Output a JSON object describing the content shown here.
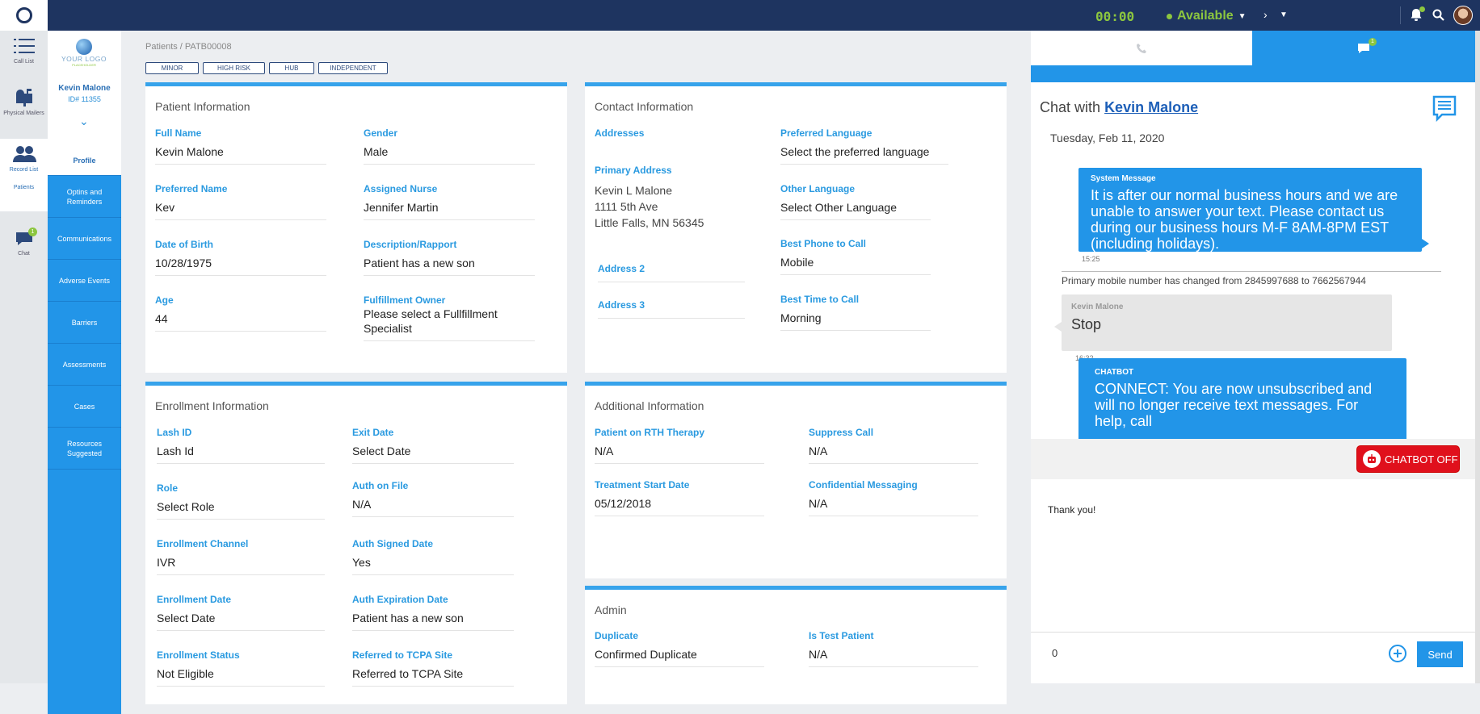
{
  "topbar": {
    "timer": "00:00",
    "status": "Available"
  },
  "leftnav": [
    {
      "label": "Call List",
      "icon": "list-icon",
      "active": false
    },
    {
      "label": "Physical Mailers",
      "icon": "mailbox-icon",
      "active": false
    },
    {
      "label": "Record List",
      "icon": "users-icon",
      "active": true,
      "sublabel": "Patients"
    },
    {
      "label": "Chat",
      "icon": "chat-icon",
      "badge": "1",
      "active": false
    }
  ],
  "patient_sidebar": {
    "logo_text": "YOUR LOGO",
    "logo_sub": "PLACEHOLDER",
    "name": "Kevin Malone",
    "id": "ID# 11355",
    "menu": [
      "Profile",
      "Optins and Reminders",
      "Communications",
      "Adverse Events",
      "Barriers",
      "Assessments",
      "Cases",
      "Resources Suggested"
    ]
  },
  "breadcrumb": "Patients / PATB00008",
  "tags": [
    "MINOR",
    "HIGH RISK",
    "HUB",
    "INDEPENDENT"
  ],
  "patient_info": {
    "title": "Patient Information",
    "fields": [
      {
        "label": "Full Name",
        "value": "Kevin Malone"
      },
      {
        "label": "Gender",
        "value": "Male"
      },
      {
        "label": "Preferred Name",
        "value": "Kev"
      },
      {
        "label": "Assigned Nurse",
        "value": "Jennifer Martin"
      },
      {
        "label": "Date of Birth",
        "value": "10/28/1975"
      },
      {
        "label": "Description/Rapport",
        "value": "Patient has a new son"
      },
      {
        "label": "Age",
        "value": "44"
      },
      {
        "label": "Fulfillment Owner",
        "value": "Please select a Fullfillment Specialist"
      }
    ]
  },
  "contact_info": {
    "title": "Contact Information",
    "addresses_label": "Addresses",
    "primary_label": "Primary Address",
    "primary_lines": [
      "Kevin L Malone",
      "1111 5th Ave",
      "Little Falls, MN 56345"
    ],
    "address2_label": "Address 2",
    "address3_label": "Address 3",
    "fields": [
      {
        "label": "Preferred Language",
        "value": "Select the preferred language"
      },
      {
        "label": "Other Language",
        "value": "Select Other Language"
      },
      {
        "label": "Best Phone to Call",
        "value": "Mobile"
      },
      {
        "label": "Best Time to Call",
        "value": "Morning"
      }
    ]
  },
  "enrollment": {
    "title": "Enrollment Information",
    "fields": [
      {
        "label": "Lash ID",
        "value": "Lash Id"
      },
      {
        "label": "Exit Date",
        "value": "Select Date"
      },
      {
        "label": "Role",
        "value": "Select Role"
      },
      {
        "label": "Auth on File",
        "value": "N/A"
      },
      {
        "label": "Enrollment Channel",
        "value": "IVR"
      },
      {
        "label": "Auth Signed Date",
        "value": "Yes"
      },
      {
        "label": "Enrollment Date",
        "value": "Select Date"
      },
      {
        "label": "Auth Expiration Date",
        "value": "Patient has a new son"
      },
      {
        "label": "Enrollment Status",
        "value": "Not Eligible"
      },
      {
        "label": "Referred to TCPA Site",
        "value": "Referred to TCPA Site"
      }
    ]
  },
  "additional": {
    "title": "Additional Information",
    "fields": [
      {
        "label": "Patient on RTH Therapy",
        "value": "N/A"
      },
      {
        "label": "Suppress Call",
        "value": "N/A"
      },
      {
        "label": "Treatment Start Date",
        "value": "05/12/2018"
      },
      {
        "label": "Confidential Messaging",
        "value": "N/A"
      }
    ]
  },
  "admin": {
    "title": "Admin",
    "fields": [
      {
        "label": "Duplicate",
        "value": "Confirmed Duplicate"
      },
      {
        "label": "Is Test Patient",
        "value": "N/A"
      }
    ]
  },
  "chat": {
    "tab_badge": "1",
    "title_prefix": "Chat with",
    "contact": "Kevin Malone",
    "date": "Tuesday, Feb 11, 2020",
    "system_header": "System Message",
    "system_text": "It is after our normal business hours and we are unable to answer your text. Please contact us during our business hours M-F 8AM-8PM EST (including holidays).",
    "system_time": "15:25",
    "note": "Primary mobile number has changed from 2845997688 to 7662567944",
    "user_header": "Kevin Malone",
    "user_text": "Stop",
    "user_time": "16:32",
    "bot_header": "CHATBOT",
    "bot_text": "CONNECT: You are now unsubscribed and will no longer receive text messages. For help, call",
    "chatbot_button": "CHATBOT OFF",
    "reply_text": "Thank you!",
    "input_value": "0",
    "send_label": "Send"
  }
}
